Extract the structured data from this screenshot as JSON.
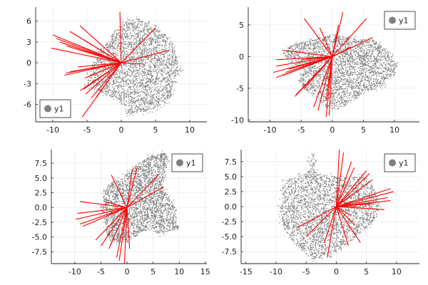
{
  "chart_data": [
    {
      "type": "scatter",
      "xlim": [
        -12.5,
        12.5
      ],
      "ylim": [
        -8.5,
        8
      ],
      "xticks": [
        -10,
        -5,
        0,
        5,
        10
      ],
      "xtick_labels": [
        "-10",
        "-5",
        "0",
        "5",
        "10"
      ],
      "yticks": [
        -6,
        -3,
        0,
        3,
        6
      ],
      "ytick_labels": [
        "-6",
        "-3",
        "0",
        "3",
        "6"
      ],
      "grid": true,
      "legend": {
        "position": "bottom-left",
        "entries": [
          {
            "label": "y1",
            "color": "#808080",
            "marker": "circle"
          }
        ]
      },
      "series": [
        {
          "kind": "points",
          "color": "#808080",
          "outline": [
            [
              -5,
              -3
            ],
            [
              -4.5,
              -1
            ],
            [
              -3.5,
              1.5
            ],
            [
              -2,
              3
            ],
            [
              -1,
              4.5
            ],
            [
              0.5,
              5.8
            ],
            [
              2,
              6.5
            ],
            [
              3.5,
              6
            ],
            [
              5,
              5.5
            ],
            [
              6.5,
              4
            ],
            [
              7.5,
              2.8
            ],
            [
              8,
              1
            ],
            [
              8.7,
              -0.8
            ],
            [
              8.5,
              -1.5
            ],
            [
              7.8,
              -2
            ],
            [
              7.5,
              -3.5
            ],
            [
              7.3,
              -4.8
            ],
            [
              6.5,
              -5.6
            ],
            [
              5,
              -6.5
            ],
            [
              3.5,
              -7
            ],
            [
              1.5,
              -7.2
            ],
            [
              0.8,
              -7.5
            ],
            [
              1,
              -6.5
            ],
            [
              -0.5,
              -5.3
            ],
            [
              -2.5,
              -4.5
            ],
            [
              -4,
              -3.8
            ]
          ]
        },
        {
          "kind": "vectors",
          "color": "#ff0000",
          "origin": [
            0,
            0
          ],
          "ends": [
            [
              -10,
              4
            ],
            [
              -9.5,
              3.5
            ],
            [
              -9,
              3
            ],
            [
              -8.5,
              2.8
            ],
            [
              -8,
              2.4
            ],
            [
              -7.5,
              4.5
            ],
            [
              -7,
              4.2
            ],
            [
              -6,
              5.3
            ],
            [
              -10.2,
              2.1
            ],
            [
              -8.3,
              -1.8
            ],
            [
              -8.1,
              -1.5
            ],
            [
              -7.5,
              -1.3
            ],
            [
              -6.3,
              -0.6
            ],
            [
              -5.3,
              -2.2
            ],
            [
              -4.8,
              -2
            ],
            [
              -5.5,
              -3.8
            ],
            [
              -5.2,
              -4.5
            ],
            [
              -4.4,
              -5.1
            ],
            [
              -3.7,
              -5
            ],
            [
              -5.7,
              -7.8
            ],
            [
              -6,
              -4
            ],
            [
              -0.2,
              7.3
            ],
            [
              5,
              5
            ],
            [
              7,
              1.8
            ],
            [
              3.4,
              -0.2
            ]
          ]
        }
      ]
    },
    {
      "type": "scatter",
      "xlim": [
        -13.5,
        14
      ],
      "ylim": [
        -10.3,
        7.8
      ],
      "xticks": [
        -10,
        -5,
        0,
        5,
        10
      ],
      "xtick_labels": [
        "-10",
        "-5",
        "0",
        "5",
        "10"
      ],
      "yticks": [
        -10,
        -5,
        0,
        5
      ],
      "ytick_labels": [
        "-10",
        "-5",
        "0",
        "5"
      ],
      "grid": true,
      "legend": {
        "position": "top-right",
        "entries": [
          {
            "label": "y1",
            "color": "#808080",
            "marker": "circle"
          }
        ]
      },
      "series": [
        {
          "kind": "points",
          "color": "#808080",
          "outline": [
            [
              -8,
              0.5
            ],
            [
              -6.5,
              1.8
            ],
            [
              -4,
              2.5
            ],
            [
              -2,
              3
            ],
            [
              0,
              3.5
            ],
            [
              2,
              3.2
            ],
            [
              4,
              2.8
            ],
            [
              6.5,
              2.6
            ],
            [
              7.5,
              2
            ],
            [
              8.5,
              1
            ],
            [
              10,
              -0.8
            ],
            [
              10.5,
              -1.5
            ],
            [
              9.8,
              -2.5
            ],
            [
              9,
              -3.5
            ],
            [
              8,
              -4.5
            ],
            [
              6.5,
              -5.2
            ],
            [
              5.3,
              -5.3
            ],
            [
              4,
              -6.5
            ],
            [
              2.5,
              -7.5
            ],
            [
              0.5,
              -8.5
            ],
            [
              -1,
              -8
            ],
            [
              -3,
              -6
            ],
            [
              -4.2,
              -5.5
            ],
            [
              -5.4,
              -4
            ],
            [
              -4.6,
              -2
            ],
            [
              -6.5,
              -1
            ]
          ]
        },
        {
          "kind": "vectors",
          "color": "#ff0000",
          "origin": [
            0,
            0
          ],
          "ends": [
            [
              -9,
              -1.5
            ],
            [
              -9.5,
              -2.5
            ],
            [
              -9,
              -3.3
            ],
            [
              -8,
              -3
            ],
            [
              -7.5,
              -2.5
            ],
            [
              -7,
              -2
            ],
            [
              -6,
              -6.3
            ],
            [
              -5.8,
              -6
            ],
            [
              -4.5,
              -5
            ],
            [
              -3,
              -8
            ],
            [
              -2.3,
              -8.5
            ],
            [
              -1,
              -9.5
            ],
            [
              -0.5,
              -9.3
            ],
            [
              -1,
              -7
            ],
            [
              -0.8,
              -5.5
            ],
            [
              -4.5,
              6
            ],
            [
              -2,
              4.5
            ],
            [
              -9,
              -0.5
            ],
            [
              -5,
              -0.5
            ],
            [
              1,
              5
            ],
            [
              1.7,
              7
            ],
            [
              5.5,
              6
            ],
            [
              6.5,
              3
            ],
            [
              3,
              1.5
            ],
            [
              -8,
              1
            ]
          ]
        }
      ]
    },
    {
      "type": "scatter",
      "xlim": [
        -14.5,
        15.3
      ],
      "ylim": [
        -9.5,
        9.8
      ],
      "xticks": [
        -10,
        -5,
        0,
        5,
        10,
        15
      ],
      "xtick_labels": [
        "-10",
        "-5",
        "0",
        "5",
        "10",
        "15"
      ],
      "yticks": [
        -7.5,
        -5,
        -2.5,
        0,
        2.5,
        5,
        7.5
      ],
      "ytick_labels": [
        "-7.5",
        "-5.0",
        "-2.5",
        "0.0",
        "2.5",
        "5.0",
        "7.5"
      ],
      "grid": true,
      "legend": {
        "position": "top-right",
        "entries": [
          {
            "label": "y1",
            "color": "#808080",
            "marker": "circle"
          }
        ]
      },
      "series": [
        {
          "kind": "points",
          "color": "#808080",
          "outline": [
            [
              -3.5,
              4
            ],
            [
              -1,
              5
            ],
            [
              0.5,
              6
            ],
            [
              1.5,
              7
            ],
            [
              4,
              8.5
            ],
            [
              6,
              9
            ],
            [
              7.5,
              9.3
            ],
            [
              7.8,
              8
            ],
            [
              7.3,
              6.5
            ],
            [
              7,
              5
            ],
            [
              6.5,
              4
            ],
            [
              8,
              2
            ],
            [
              9.5,
              -0.5
            ],
            [
              9,
              -2
            ],
            [
              10,
              -3.5
            ],
            [
              7.5,
              -4.2
            ],
            [
              6,
              -4.5
            ],
            [
              5,
              -3.6
            ],
            [
              3,
              -4
            ],
            [
              0.5,
              -5.5
            ],
            [
              -2,
              -6
            ],
            [
              -3.5,
              -5.5
            ],
            [
              -4,
              -4
            ],
            [
              -4.5,
              -1.5
            ],
            [
              -5,
              0
            ],
            [
              -4.5,
              2
            ]
          ]
        },
        {
          "kind": "vectors",
          "color": "#ff0000",
          "origin": [
            0,
            0
          ],
          "ends": [
            [
              -9,
              1
            ],
            [
              -9.5,
              -1
            ],
            [
              -9.8,
              -2
            ],
            [
              -9,
              -2.8
            ],
            [
              -8.5,
              -3.2
            ],
            [
              -6,
              -5.5
            ],
            [
              -5,
              -6.5
            ],
            [
              -3.5,
              -7
            ],
            [
              -2,
              -8.5
            ],
            [
              -1.5,
              -9
            ],
            [
              -0.5,
              -9.5
            ],
            [
              0.5,
              -7
            ],
            [
              -3,
              5.5
            ],
            [
              1,
              6.5
            ],
            [
              2,
              7
            ],
            [
              6,
              5.5
            ],
            [
              7,
              3.5
            ],
            [
              -4.3,
              1
            ]
          ]
        }
      ]
    },
    {
      "type": "scatter",
      "xlim": [
        -15.8,
        13.8
      ],
      "ylim": [
        -9.5,
        9.5
      ],
      "xticks": [
        -15,
        -10,
        -5,
        0,
        5,
        10
      ],
      "xtick_labels": [
        "-15",
        "-10",
        "-5",
        "0",
        "5",
        "10"
      ],
      "yticks": [
        -7.5,
        -5,
        -2.5,
        0,
        2.5,
        5,
        7.5
      ],
      "ytick_labels": [
        "-7.5",
        "-5.0",
        "-2.5",
        "0.0",
        "2.5",
        "5.0",
        "7.5"
      ],
      "grid": true,
      "legend": {
        "position": "top-right",
        "entries": [
          {
            "label": "y1",
            "color": "#808080",
            "marker": "circle"
          }
        ]
      },
      "series": [
        {
          "kind": "points",
          "color": "#808080",
          "outline": [
            [
              -9,
              4
            ],
            [
              -7,
              5
            ],
            [
              -5,
              5.5
            ],
            [
              -4,
              6.5
            ],
            [
              -3.5,
              7.5
            ],
            [
              -4,
              9
            ],
            [
              -4.5,
              7
            ],
            [
              -3,
              5.5
            ],
            [
              0,
              5
            ],
            [
              2,
              4.8
            ],
            [
              4,
              5
            ],
            [
              5,
              4.8
            ],
            [
              6,
              3.5
            ],
            [
              6.8,
              1.5
            ],
            [
              7,
              0
            ],
            [
              6.8,
              -1.5
            ],
            [
              5.5,
              -3
            ],
            [
              4,
              -4.5
            ],
            [
              2,
              -6
            ],
            [
              0,
              -7.5
            ],
            [
              -2,
              -8.5
            ],
            [
              -4,
              -8.8
            ],
            [
              -6,
              -7
            ],
            [
              -8,
              -5
            ],
            [
              -9,
              -3
            ],
            [
              -9.3,
              0
            ],
            [
              -8.8,
              2
            ]
          ]
        },
        {
          "kind": "vectors",
          "color": "#ff0000",
          "origin": [
            0,
            0
          ],
          "ends": [
            [
              0.5,
              9.5
            ],
            [
              1.2,
              9
            ],
            [
              2.5,
              7.5
            ],
            [
              3,
              6.5
            ],
            [
              5,
              6
            ],
            [
              5.5,
              5.5
            ],
            [
              6,
              4.5
            ],
            [
              9,
              3
            ],
            [
              9.5,
              2.5
            ],
            [
              8.5,
              1.5
            ],
            [
              9,
              1
            ],
            [
              8,
              -0.5
            ],
            [
              6,
              0.5
            ],
            [
              3.5,
              0
            ],
            [
              2.5,
              -1.5
            ],
            [
              3,
              -3
            ],
            [
              4,
              -6
            ],
            [
              2,
              -6.5
            ],
            [
              -1.5,
              -8.5
            ],
            [
              -2,
              -6
            ],
            [
              -5,
              -5
            ],
            [
              -6.5,
              -3.5
            ]
          ]
        }
      ]
    }
  ]
}
